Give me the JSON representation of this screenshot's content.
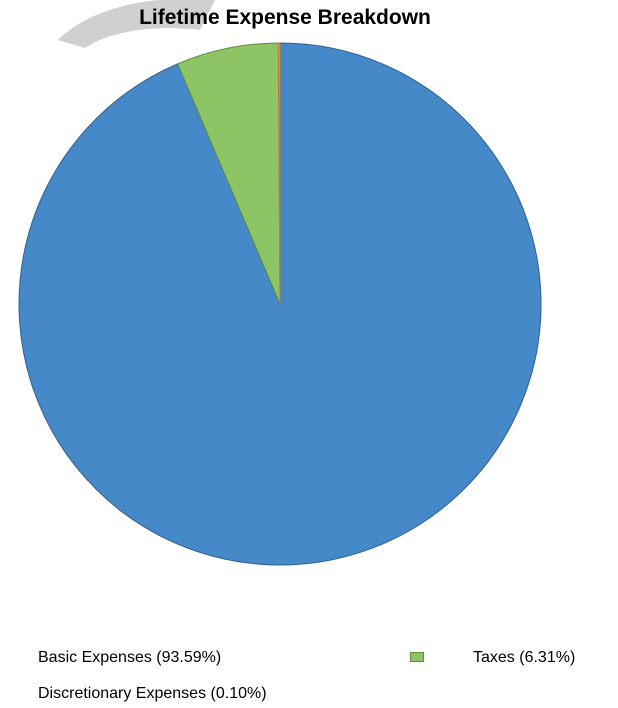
{
  "chart_data": {
    "type": "pie",
    "title": "Lifetime Expense Breakdown",
    "slices": [
      {
        "label": "Basic Expenses (93.59%)",
        "value": 93.59,
        "color": "#4589c8",
        "stroke": "#2f5f8e"
      },
      {
        "label": "Taxes (6.31%)",
        "value": 6.31,
        "color": "#8dc566",
        "stroke": "#5f8f3e"
      },
      {
        "label": "Discretionary Expenses (0.10%)",
        "value": 0.1,
        "color": "#f0a350",
        "stroke": "#c07b2c"
      }
    ],
    "legend_position": "bottom"
  },
  "watermark": {
    "color": "#c8c8c8"
  }
}
